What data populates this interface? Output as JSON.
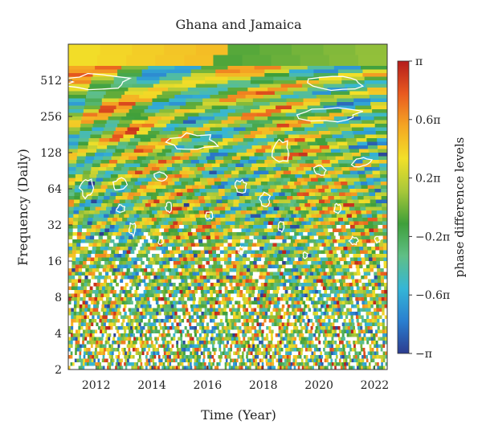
{
  "chart_data": {
    "type": "heatmap",
    "title": "Ghana and Jamaica",
    "xlabel": "Time (Year)",
    "ylabel": "Frequency (Daily)",
    "x_ticks": [
      "2012",
      "2014",
      "2016",
      "2018",
      "2020",
      "2022"
    ],
    "x_tick_values": [
      2012,
      2014,
      2016,
      2018,
      2020,
      2022
    ],
    "xlim": [
      2011.0,
      2022.45
    ],
    "y_ticks": [
      "2",
      "4",
      "8",
      "16",
      "32",
      "64",
      "128",
      "256",
      "512"
    ],
    "y_tick_values": [
      2,
      4,
      8,
      16,
      32,
      64,
      128,
      256,
      512
    ],
    "ylim": [
      2,
      1024
    ],
    "y_scale": "log2",
    "colorbar": {
      "label": "phase difference levels",
      "ticks": [
        "π",
        "0.6π",
        "0.2π",
        "−0.2π",
        "−0.6π",
        "−π"
      ],
      "tick_values": [
        1,
        0.6,
        0.2,
        -0.2,
        -0.6,
        -1
      ],
      "colors": [
        "#2c3c8f",
        "#2a7fd0",
        "#35b6d6",
        "#5fbf86",
        "#3f9f3a",
        "#a8c83a",
        "#f2e028",
        "#f5a623",
        "#e85a1f",
        "#b41c1c"
      ]
    },
    "contour_color": "#ffffff"
  }
}
